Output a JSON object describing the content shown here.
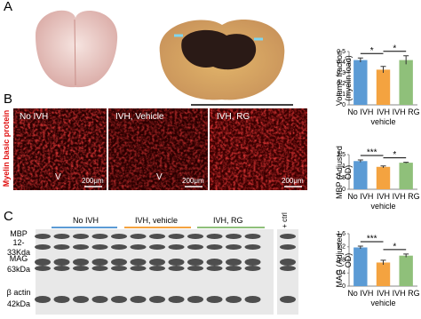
{
  "panel_labels": [
    "A",
    "B",
    "C"
  ],
  "panel_b": {
    "side_label": "Myelin basic protein",
    "images": [
      {
        "caption": "No IVH",
        "marker": "V",
        "scale": "200μm"
      },
      {
        "caption": "IVH, Vehicle",
        "marker": "V",
        "scale": "200μm"
      },
      {
        "caption": "IVH, RG",
        "scale": "200μm"
      }
    ]
  },
  "panel_c": {
    "groups": [
      "No IVH",
      "IVH, vehicle",
      "IVH, RG"
    ],
    "control": "+ ctrl",
    "rows": [
      {
        "name": "MBP",
        "size": "12-33Kda"
      },
      {
        "name": "MAG",
        "size": "63kDa"
      },
      {
        "name": "β actin",
        "size": "42kDa"
      }
    ]
  },
  "chart_data": [
    {
      "type": "bar",
      "y_label": "Volume fraction (myelin load)",
      "categories": [
        "No IVH",
        "IVH vehicle",
        "IVH RG"
      ],
      "values": [
        0.42,
        0.33,
        0.42
      ],
      "errors": [
        0.02,
        0.03,
        0.04
      ],
      "colors": [
        "#5b9bd5",
        "#f4a340",
        "#8fc07a"
      ],
      "ylim": [
        0,
        0.5
      ],
      "yticks": [
        0,
        0.1,
        0.2,
        0.3,
        0.4,
        0.5
      ],
      "significance": [
        "*",
        "*"
      ]
    },
    {
      "type": "bar",
      "y_label": "MBP (Adjusted OD)",
      "categories": [
        "No IVH",
        "IVH vehicle",
        "IVH RG"
      ],
      "values": [
        1.22,
        0.97,
        1.15
      ],
      "errors": [
        0.05,
        0.04,
        0.02
      ],
      "colors": [
        "#5b9bd5",
        "#f4a340",
        "#8fc07a"
      ],
      "ylim": [
        0,
        1.5
      ],
      "yticks": [
        0,
        0.5,
        1,
        1.5
      ],
      "significance": [
        "***",
        "*"
      ]
    },
    {
      "type": "bar",
      "y_label": "MAG (Adjusted OD)",
      "categories": [
        "No IVH",
        "IVH vehicle",
        "IVH RG"
      ],
      "values": [
        1.18,
        0.72,
        0.93
      ],
      "errors": [
        0.04,
        0.07,
        0.05
      ],
      "colors": [
        "#5b9bd5",
        "#f4a340",
        "#8fc07a"
      ],
      "ylim": [
        0,
        1.6
      ],
      "yticks": [
        0,
        0.4,
        0.8,
        1.2,
        1.6
      ],
      "significance": [
        "***",
        "*"
      ]
    }
  ]
}
